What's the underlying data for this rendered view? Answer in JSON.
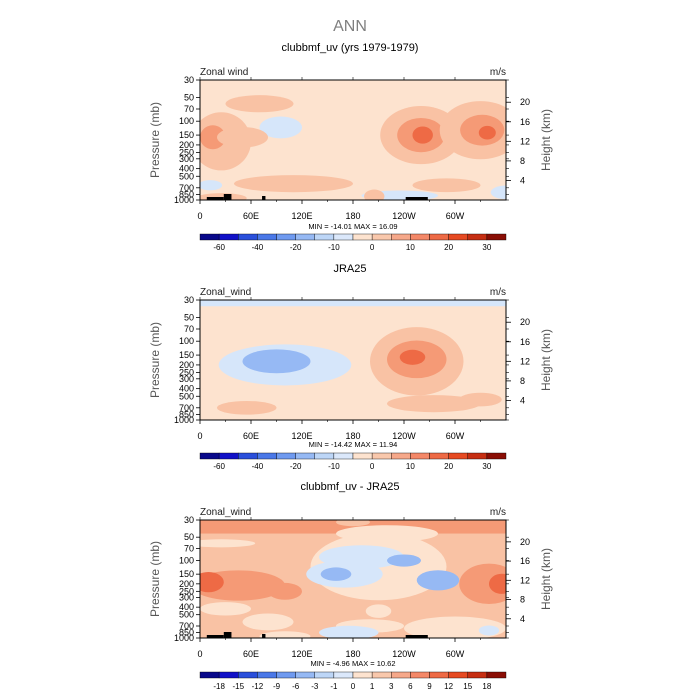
{
  "figure": {
    "title": "ANN"
  },
  "chart_data": [
    {
      "type": "heatmap",
      "title": "clubbmf_uv (yrs 1979-1979)",
      "left_label": "Zonal wind",
      "right_label": "m/s",
      "ylabel": "Pressure (mb)",
      "y2label": "Height (km)",
      "x_ticks": [
        "0",
        "60E",
        "120E",
        "180",
        "120W",
        "60W"
      ],
      "x_range": [
        0,
        360
      ],
      "y_ticks": [
        "30",
        "50",
        "70",
        "100",
        "150",
        "200",
        "250",
        "300",
        "400",
        "500",
        "700",
        "850",
        "1000"
      ],
      "y_values": [
        30,
        50,
        70,
        100,
        150,
        200,
        250,
        300,
        400,
        500,
        700,
        850,
        1000
      ],
      "y_range": [
        30,
        1000
      ],
      "y_scale": "log",
      "height_ticks": [
        "4",
        "8",
        "12",
        "16",
        "20"
      ],
      "height_values": [
        4,
        8,
        12,
        16,
        20
      ],
      "minmax": "MIN = -14.01   MAX =  16.09",
      "colorbar_labels": [
        "-60",
        "-40",
        "-20",
        "-10",
        "0",
        "10",
        "20",
        "30"
      ],
      "colorbar_levels": [
        -70,
        -60,
        -50,
        -40,
        -30,
        -20,
        -15,
        -10,
        -5,
        0,
        5,
        10,
        15,
        20,
        25,
        30,
        35
      ],
      "background": 3,
      "features": [
        {
          "type": "e",
          "lon": 95,
          "p": 120,
          "rl": 25,
          "rp": 0.32,
          "c": 2
        },
        {
          "type": "e",
          "lon": 260,
          "p": 150,
          "rl": 48,
          "rp": 0.85,
          "c": 4
        },
        {
          "type": "e",
          "lon": 260,
          "p": 150,
          "rl": 28,
          "rp": 0.5,
          "c": 5
        },
        {
          "type": "e",
          "lon": 262,
          "p": 150,
          "rl": 12,
          "rp": 0.25,
          "c": 6
        },
        {
          "type": "e",
          "lon": 330,
          "p": 130,
          "rl": 48,
          "rp": 0.85,
          "c": 4
        },
        {
          "type": "e",
          "lon": 332,
          "p": 130,
          "rl": 26,
          "rp": 0.45,
          "c": 5
        },
        {
          "type": "e",
          "lon": 338,
          "p": 140,
          "rl": 10,
          "rp": 0.2,
          "c": 6
        },
        {
          "type": "e",
          "lon": 25,
          "p": 180,
          "rl": 35,
          "rp": 0.85,
          "c": 4
        },
        {
          "type": "e",
          "lon": 15,
          "p": 160,
          "rl": 15,
          "rp": 0.35,
          "c": 5
        },
        {
          "type": "e",
          "lon": 50,
          "p": 160,
          "rl": 30,
          "rp": 0.3,
          "c": 4
        },
        {
          "type": "e",
          "lon": 70,
          "p": 60,
          "rl": 40,
          "rp": 0.25,
          "c": 4
        },
        {
          "type": "e",
          "lon": 110,
          "p": 620,
          "rl": 70,
          "rp": 0.25,
          "c": 4
        },
        {
          "type": "e",
          "lon": 290,
          "p": 650,
          "rl": 40,
          "rp": 0.2,
          "c": 4
        },
        {
          "type": "e",
          "lon": 235,
          "p": 880,
          "rl": 45,
          "rp": 0.15,
          "c": 2
        },
        {
          "type": "e",
          "lon": 12,
          "p": 650,
          "rl": 14,
          "rp": 0.15,
          "c": 2
        },
        {
          "type": "e",
          "lon": 360,
          "p": 800,
          "rl": 18,
          "rp": 0.2,
          "c": 2
        },
        {
          "type": "e",
          "lon": 205,
          "p": 900,
          "rl": 12,
          "rp": 0.2,
          "c": 4
        },
        {
          "type": "e",
          "lon": 25,
          "p": 950,
          "rl": 30,
          "rp": 0.15,
          "c": 4
        }
      ],
      "topography": [
        {
          "lon0": 8,
          "lon1": 28,
          "height": 3
        },
        {
          "lon0": 28,
          "lon1": 37,
          "height": 6
        },
        {
          "lon0": 73,
          "lon1": 77,
          "height": 4
        },
        {
          "lon0": 242,
          "lon1": 268,
          "height": 3
        }
      ]
    },
    {
      "type": "heatmap",
      "title": "JRA25",
      "left_label": "Zonal_wind",
      "right_label": "m/s",
      "ylabel": "Pressure (mb)",
      "y2label": "Height (km)",
      "x_ticks": [
        "0",
        "60E",
        "120E",
        "180",
        "120W",
        "60W"
      ],
      "x_range": [
        0,
        360
      ],
      "y_ticks": [
        "30",
        "50",
        "70",
        "100",
        "150",
        "200",
        "250",
        "300",
        "400",
        "500",
        "700",
        "850",
        "1000"
      ],
      "y_values": [
        30,
        50,
        70,
        100,
        150,
        200,
        250,
        300,
        400,
        500,
        700,
        850,
        1000
      ],
      "y_range": [
        30,
        1000
      ],
      "y_scale": "log",
      "height_ticks": [
        "4",
        "8",
        "12",
        "16",
        "20"
      ],
      "height_values": [
        4,
        8,
        12,
        16,
        20
      ],
      "minmax": "MIN = -14.42   MAX =  11.94",
      "colorbar_labels": [
        "-60",
        "-40",
        "-20",
        "-10",
        "0",
        "10",
        "20",
        "30"
      ],
      "colorbar_levels": [
        -70,
        -60,
        -50,
        -40,
        -30,
        -20,
        -15,
        -10,
        -5,
        0,
        5,
        10,
        15,
        20,
        25,
        30,
        35
      ],
      "background": 3,
      "features": [
        {
          "type": "band",
          "p0": 30,
          "p1": 36,
          "c": 2
        },
        {
          "type": "e",
          "lon": 100,
          "p": 200,
          "rl": 78,
          "rp": 0.6,
          "c": 2
        },
        {
          "type": "e",
          "lon": 90,
          "p": 180,
          "rl": 40,
          "rp": 0.35,
          "c": 1
        },
        {
          "type": "e",
          "lon": 255,
          "p": 180,
          "rl": 55,
          "rp": 1.0,
          "c": 4
        },
        {
          "type": "e",
          "lon": 255,
          "p": 170,
          "rl": 35,
          "rp": 0.55,
          "c": 5
        },
        {
          "type": "e",
          "lon": 250,
          "p": 160,
          "rl": 15,
          "rp": 0.22,
          "c": 6
        },
        {
          "type": "e",
          "lon": 275,
          "p": 620,
          "rl": 55,
          "rp": 0.25,
          "c": 4
        },
        {
          "type": "e",
          "lon": 55,
          "p": 700,
          "rl": 35,
          "rp": 0.2,
          "c": 4
        },
        {
          "type": "e",
          "lon": 330,
          "p": 550,
          "rl": 25,
          "rp": 0.2,
          "c": 4
        }
      ],
      "topography": []
    },
    {
      "type": "heatmap",
      "title": "clubbmf_uv - JRA25",
      "left_label": "Zonal_wind",
      "right_label": "m/s",
      "ylabel": "Pressure (mb)",
      "y2label": "Height (km)",
      "x_ticks": [
        "0",
        "60E",
        "120E",
        "180",
        "120W",
        "60W"
      ],
      "x_range": [
        0,
        360
      ],
      "y_ticks": [
        "30",
        "50",
        "70",
        "100",
        "150",
        "200",
        "250",
        "300",
        "400",
        "500",
        "700",
        "850",
        "1000"
      ],
      "y_values": [
        30,
        50,
        70,
        100,
        150,
        200,
        250,
        300,
        400,
        500,
        700,
        850,
        1000
      ],
      "y_range": [
        30,
        1000
      ],
      "y_scale": "log",
      "height_ticks": [
        "4",
        "8",
        "12",
        "16",
        "20"
      ],
      "height_values": [
        4,
        8,
        12,
        16,
        20
      ],
      "minmax": "MIN = -4.96   MAX =  10.62",
      "colorbar_labels": [
        "-18",
        "-15",
        "-12",
        "-9",
        "-6",
        "-3",
        "-1",
        "0",
        "1",
        "3",
        "6",
        "9",
        "12",
        "15",
        "18"
      ],
      "colorbar_levels": [
        -21,
        -18,
        -15,
        -12,
        -9,
        -6,
        -3,
        -1,
        0,
        1,
        3,
        6,
        9,
        12,
        15,
        18,
        21
      ],
      "background": 4,
      "features": [
        {
          "type": "band",
          "p0": 30,
          "p1": 45,
          "c": 5
        },
        {
          "type": "band",
          "p0": 45,
          "p1": 55,
          "c": 4
        },
        {
          "type": "e",
          "lon": 180,
          "p": 32,
          "rl": 20,
          "rp": 0.12,
          "c": 4
        },
        {
          "type": "e",
          "lon": 25,
          "p": 60,
          "rl": 40,
          "rp": 0.12,
          "c": 3
        },
        {
          "type": "e",
          "lon": 220,
          "p": 45,
          "rl": 60,
          "rp": 0.25,
          "c": 3
        },
        {
          "type": "e",
          "lon": 210,
          "p": 120,
          "rl": 80,
          "rp": 1.0,
          "c": 3
        },
        {
          "type": "e",
          "lon": 190,
          "p": 90,
          "rl": 50,
          "rp": 0.35,
          "c": 2
        },
        {
          "type": "e",
          "lon": 170,
          "p": 150,
          "rl": 45,
          "rp": 0.4,
          "c": 2
        },
        {
          "type": "e",
          "lon": 160,
          "p": 150,
          "rl": 18,
          "rp": 0.2,
          "c": 1
        },
        {
          "type": "e",
          "lon": 240,
          "p": 100,
          "rl": 20,
          "rp": 0.18,
          "c": 1
        },
        {
          "type": "e",
          "lon": 280,
          "p": 180,
          "rl": 25,
          "rp": 0.3,
          "c": 1
        },
        {
          "type": "e",
          "lon": 45,
          "p": 210,
          "rl": 55,
          "rp": 0.45,
          "c": 5
        },
        {
          "type": "e",
          "lon": 10,
          "p": 190,
          "rl": 18,
          "rp": 0.3,
          "c": 6
        },
        {
          "type": "e",
          "lon": 100,
          "p": 250,
          "rl": 20,
          "rp": 0.25,
          "c": 5
        },
        {
          "type": "e",
          "lon": 340,
          "p": 200,
          "rl": 35,
          "rp": 0.6,
          "c": 5
        },
        {
          "type": "e",
          "lon": 355,
          "p": 200,
          "rl": 15,
          "rp": 0.3,
          "c": 6
        },
        {
          "type": "e",
          "lon": 80,
          "p": 620,
          "rl": 30,
          "rp": 0.25,
          "c": 3
        },
        {
          "type": "e",
          "lon": 210,
          "p": 450,
          "rl": 15,
          "rp": 0.2,
          "c": 3
        },
        {
          "type": "e",
          "lon": 30,
          "p": 420,
          "rl": 30,
          "rp": 0.2,
          "c": 3
        },
        {
          "type": "e",
          "lon": 200,
          "p": 700,
          "rl": 40,
          "rp": 0.2,
          "c": 3
        },
        {
          "type": "e",
          "lon": 300,
          "p": 750,
          "rl": 60,
          "rp": 0.35,
          "c": 3
        },
        {
          "type": "e",
          "lon": 340,
          "p": 800,
          "rl": 12,
          "rp": 0.15,
          "c": 2
        },
        {
          "type": "e",
          "lon": 175,
          "p": 850,
          "rl": 35,
          "rp": 0.2,
          "c": 2
        },
        {
          "type": "e",
          "lon": 100,
          "p": 950,
          "rl": 30,
          "rp": 0.15,
          "c": 3
        }
      ],
      "topography": [
        {
          "lon0": 8,
          "lon1": 28,
          "height": 3
        },
        {
          "lon0": 28,
          "lon1": 37,
          "height": 6
        },
        {
          "lon0": 73,
          "lon1": 77,
          "height": 4
        },
        {
          "lon0": 242,
          "lon1": 268,
          "height": 3
        }
      ]
    }
  ],
  "colors": {
    "palette": [
      "#08088a",
      "#1111c8",
      "#2a4fdb",
      "#4a78e8",
      "#6f9af0",
      "#96b9f4",
      "#bdd6f7",
      "#dbe8fb",
      "#fde3cf",
      "#f9c8ac",
      "#f6a88a",
      "#f48868",
      "#ee6a45",
      "#e64a22",
      "#c62e12",
      "#8a0e05"
    ],
    "map_colors": [
      "#6f9af0",
      "#96b9f4",
      "#d6e6fa",
      "#fde3cf",
      "#f9c2a4",
      "#f59a76",
      "#ee6a45"
    ],
    "topography": "#000000",
    "text": "#000000",
    "subtle_text": "#7f7f7f"
  }
}
